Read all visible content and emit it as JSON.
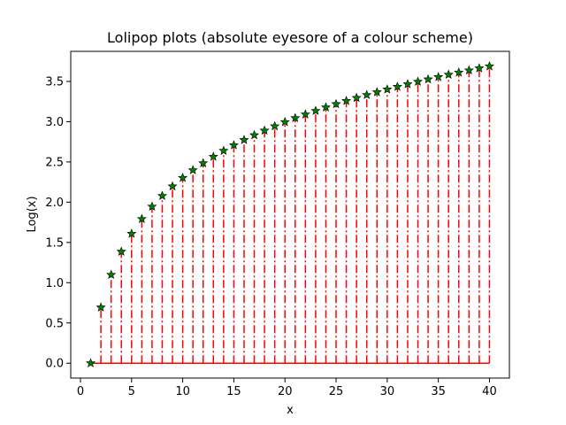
{
  "chart_data": {
    "type": "lollipop",
    "title": "Lolipop plots (absolute eyesore of a colour scheme)",
    "xlabel": "x",
    "ylabel": "Log(x)",
    "xlim": [
      -0.95,
      41.95
    ],
    "ylim": [
      -0.1845,
      3.8735
    ],
    "xticks": [
      0,
      5,
      10,
      15,
      20,
      25,
      30,
      35,
      40
    ],
    "yticks": [
      0.0,
      0.5,
      1.0,
      1.5,
      2.0,
      2.5,
      3.0,
      3.5
    ],
    "xtick_labels": [
      "0",
      "5",
      "10",
      "15",
      "20",
      "25",
      "30",
      "35",
      "40"
    ],
    "ytick_labels": [
      "0.0",
      "0.5",
      "1.0",
      "1.5",
      "2.0",
      "2.5",
      "3.0",
      "3.5"
    ],
    "grid": false,
    "legend": "none",
    "baseline": 0,
    "colors": {
      "stem": "#ff0000",
      "marker": "#008000",
      "marker_edge": "#000000",
      "baseline": "#ff0000"
    },
    "marker_shape": "star",
    "stem_style": "dashdot",
    "x": [
      1,
      2,
      3,
      4,
      5,
      6,
      7,
      8,
      9,
      10,
      11,
      12,
      13,
      14,
      15,
      16,
      17,
      18,
      19,
      20,
      21,
      22,
      23,
      24,
      25,
      26,
      27,
      28,
      29,
      30,
      31,
      32,
      33,
      34,
      35,
      36,
      37,
      38,
      39,
      40
    ],
    "values": [
      0.0,
      0.693,
      1.099,
      1.386,
      1.609,
      1.792,
      1.946,
      2.079,
      2.197,
      2.303,
      2.398,
      2.485,
      2.565,
      2.639,
      2.708,
      2.773,
      2.833,
      2.89,
      2.944,
      2.996,
      3.045,
      3.091,
      3.135,
      3.178,
      3.219,
      3.258,
      3.296,
      3.332,
      3.367,
      3.401,
      3.434,
      3.466,
      3.497,
      3.526,
      3.555,
      3.584,
      3.611,
      3.638,
      3.664,
      3.689
    ]
  }
}
